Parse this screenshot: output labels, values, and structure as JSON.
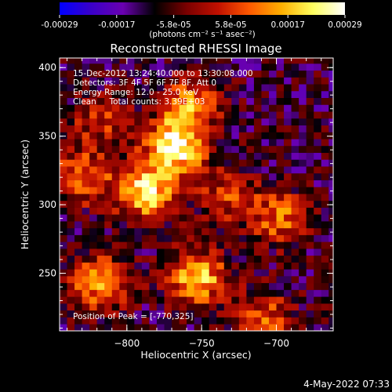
{
  "chart_data": {
    "type": "heatmap",
    "title": "Reconstructed RHESSI Image",
    "xlabel": "Heliocentric X (arcsec)",
    "ylabel": "Heliocentric Y (arcsec)",
    "xlim": [
      -845,
      -662
    ],
    "ylim": [
      208,
      407
    ],
    "xticks": [
      -800,
      -750,
      -700
    ],
    "yticks": [
      250,
      300,
      350,
      400
    ],
    "colorbar": {
      "ticks": [
        "-0.00029",
        "-0.00017",
        "-5.8e-05",
        "5.8e-05",
        "0.00017",
        "0.00029"
      ],
      "range": [
        -0.00029,
        0.00029
      ],
      "units": "(photons cm⁻² s⁻¹ asec⁻²)",
      "colormap": [
        "#0000ff",
        "#3a00c8",
        "#6a00b0",
        "#000000",
        "#7a0000",
        "#c01000",
        "#ff5a00",
        "#ffb000",
        "#ffff60",
        "#ffffff"
      ]
    },
    "annotations": {
      "time_range": "15-Dec-2012 13:24:40.000 to 13:30:08.000",
      "detectors": "Detectors: 3F 4F 5F 6F 7F 8F, Att 0",
      "energy": "Energy Range: 12.0 - 25.0 keV",
      "clean": "Clean     Total counts: 3.39E+03",
      "peak": "Position of Peak = [-770,325]"
    },
    "peak": {
      "x": -770,
      "y": 325
    },
    "sources": [
      {
        "x": -770,
        "y": 340,
        "intensity": 1.0
      },
      {
        "x": -790,
        "y": 307,
        "intensity": 0.9
      },
      {
        "x": -755,
        "y": 245,
        "intensity": 0.8
      },
      {
        "x": -820,
        "y": 240,
        "intensity": 0.7
      },
      {
        "x": -833,
        "y": 318,
        "intensity": 0.6
      },
      {
        "x": -700,
        "y": 288,
        "intensity": 0.55
      },
      {
        "x": -760,
        "y": 370,
        "intensity": 0.6
      },
      {
        "x": -710,
        "y": 215,
        "intensity": 0.5
      },
      {
        "x": -735,
        "y": 305,
        "intensity": 0.45
      },
      {
        "x": -820,
        "y": 360,
        "intensity": 0.4
      }
    ]
  },
  "footer": {
    "date": "4-May-2022 07:33"
  }
}
